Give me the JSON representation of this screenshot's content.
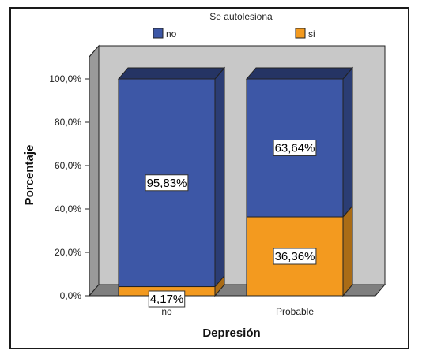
{
  "chart_data": {
    "type": "bar",
    "stacked": true,
    "style": "3d",
    "legend": {
      "title": "Se autolesiona",
      "position": "top"
    },
    "categories": [
      "no",
      "Probable"
    ],
    "series": [
      {
        "name": "no",
        "color": "#3d57a6",
        "values": [
          95.83,
          63.64
        ],
        "labels": [
          "95,83%",
          "63,64%"
        ]
      },
      {
        "name": "si",
        "color": "#f39a1f",
        "values": [
          4.17,
          36.36
        ],
        "labels": [
          "4,17%",
          "36,36%"
        ]
      }
    ],
    "xlabel": "Depresión",
    "ylabel": "Porcentaje",
    "ylim": [
      0,
      100
    ],
    "yticks": [
      "0,0%",
      "20,0%",
      "40,0%",
      "60,0%",
      "80,0%",
      "100,0%"
    ],
    "ytick_values": [
      0,
      20,
      40,
      60,
      80,
      100
    ],
    "background": "#c8c8c8"
  }
}
